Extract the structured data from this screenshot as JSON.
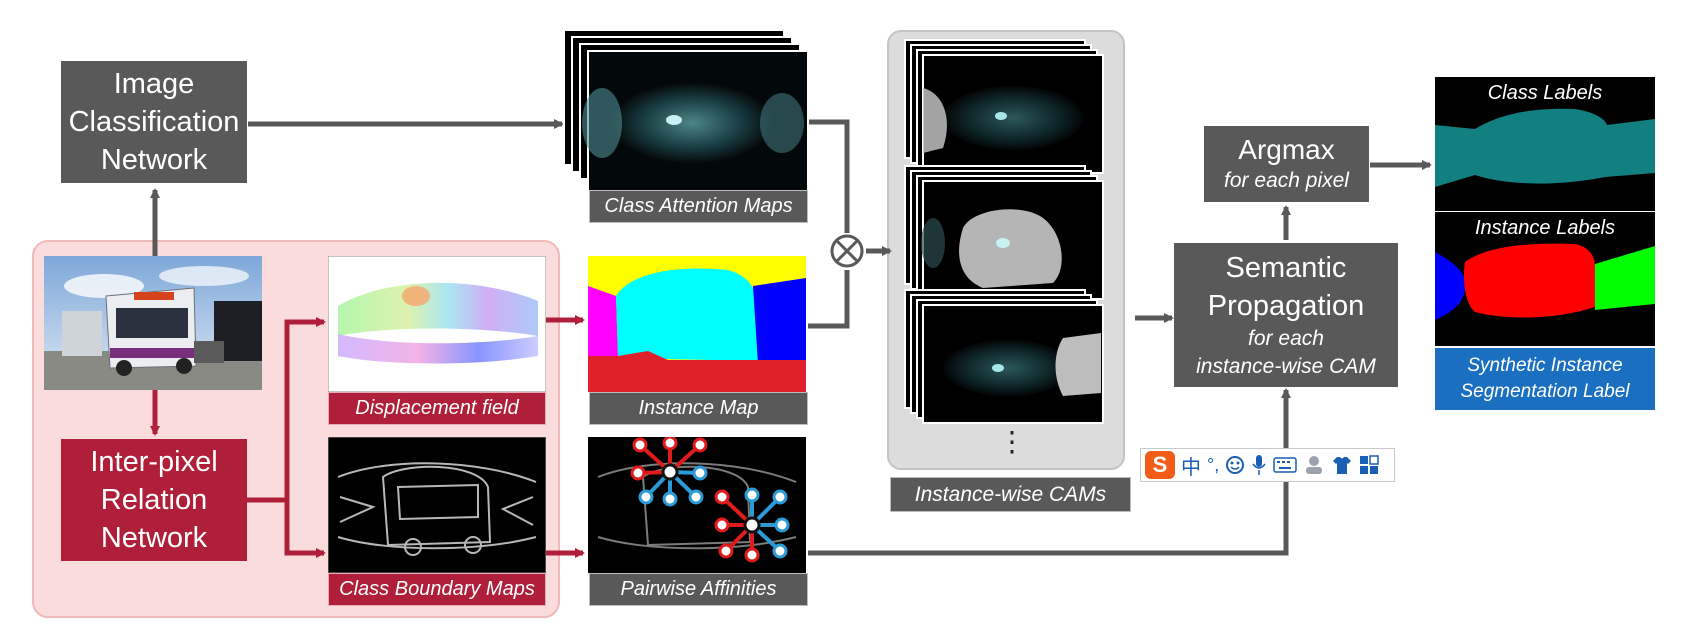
{
  "blocks": {
    "image_classification": [
      "Image",
      "Classification",
      "Network"
    ],
    "inter_pixel": [
      "Inter-pixel",
      "Relation",
      "Network"
    ],
    "argmax_title": "Argmax",
    "argmax_sub": "for each pixel",
    "semantic_title": [
      "Semantic",
      "Propagation"
    ],
    "semantic_sub": [
      "for each",
      "instance-wise CAM"
    ]
  },
  "captions": {
    "class_attention": "Class Attention Maps",
    "displacement": "Displacement field",
    "instance_map": "Instance Map",
    "class_boundary": "Class Boundary Maps",
    "pairwise": "Pairwise Affinities",
    "instance_cams": "Instance-wise CAMs",
    "class_labels": "Class Labels",
    "instance_labels": "Instance Labels",
    "synthetic": [
      "Synthetic Instance",
      "Segmentation Label"
    ],
    "ellipsis": "⋮"
  },
  "ime_toolbar": {
    "logo": "S",
    "lang": "中",
    "punct": "°,",
    "items": [
      "emoji-icon",
      "microphone-icon",
      "keyboard-icon",
      "user-icon",
      "shirt-icon",
      "grid-icon"
    ]
  },
  "colors": {
    "block_gray": "#595959",
    "block_red": "#b01f3a",
    "arrow_gray": "#595959",
    "arrow_red": "#b01f3a",
    "label_blue": "#1a6fc0",
    "teal": "#127f80",
    "instance_red": "#ff0000",
    "instance_blue": "#0000ff",
    "instance_green": "#00ff00",
    "cyan": "#00ffff",
    "yellow": "#ffff00",
    "magenta": "#ff00ff"
  }
}
